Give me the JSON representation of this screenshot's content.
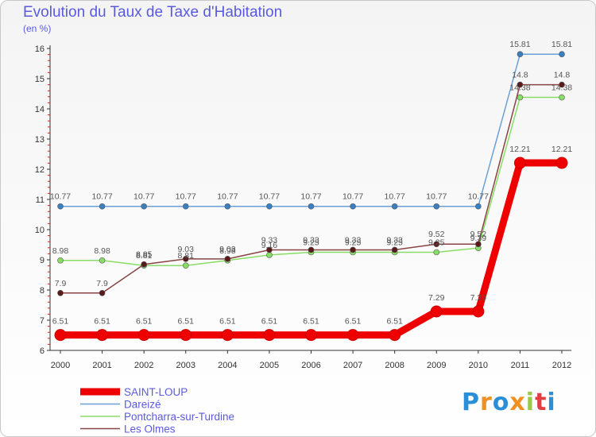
{
  "chart_data": {
    "type": "line",
    "title": "Evolution du Taux de Taxe d'Habitation",
    "subtitle": "(en %)",
    "x": [
      "2000",
      "2001",
      "2002",
      "2003",
      "2004",
      "2005",
      "2006",
      "2007",
      "2008",
      "2009",
      "2010",
      "2011",
      "2012"
    ],
    "yticks": [
      "6",
      "7",
      "8",
      "9",
      "10",
      "11",
      "12",
      "13",
      "14",
      "15",
      "16"
    ],
    "ylim": [
      6,
      16
    ],
    "grid": false,
    "legend_position": "bottom-left",
    "series": [
      {
        "name": "SAINT-LOUP",
        "color": "#ee0000",
        "values": [
          6.51,
          6.51,
          6.51,
          6.51,
          6.51,
          6.51,
          6.51,
          6.51,
          6.51,
          7.29,
          7.29,
          12.21,
          12.21
        ],
        "labels": [
          "6.51",
          "6.51",
          "6.51",
          "6.51",
          "6.51",
          "6.51",
          "6.51",
          "6.51",
          "6.51",
          "7.29",
          "7.29",
          "12.21",
          "12.21"
        ]
      },
      {
        "name": "Dareizé",
        "color": "#6aa0d6",
        "values": [
          10.77,
          10.77,
          10.77,
          10.77,
          10.77,
          10.77,
          10.77,
          10.77,
          10.77,
          10.77,
          10.77,
          15.81,
          15.81
        ],
        "labels": [
          "10.77",
          "10.77",
          "10.77",
          "10.77",
          "10.77",
          "10.77",
          "10.77",
          "10.77",
          "10.77",
          "10.77",
          "10.77",
          "15.81",
          "15.81"
        ]
      },
      {
        "name": "Pontcharra-sur-Turdine",
        "color": "#88dd66",
        "values": [
          8.98,
          8.98,
          8.81,
          8.81,
          8.98,
          9.16,
          9.25,
          9.25,
          9.25,
          9.25,
          9.39,
          14.38,
          14.38
        ],
        "labels": [
          "8.98",
          "8.98",
          "8.81",
          "8.81",
          "8.98",
          "9.16",
          "9.25",
          "9.25",
          "9.25",
          "9.25",
          "9.39",
          "14.38",
          "14.38"
        ]
      },
      {
        "name": "Les Olmes",
        "color": "#884444",
        "values": [
          7.9,
          7.9,
          8.85,
          9.03,
          9.03,
          9.33,
          9.33,
          9.33,
          9.33,
          9.52,
          9.52,
          14.8,
          14.8
        ],
        "labels": [
          "7.9",
          "7.9",
          "8.85",
          "9.03",
          "9.03",
          "9.33",
          "9.33",
          "9.33",
          "9.33",
          "9.52",
          "9.52",
          "14.8",
          "14.8"
        ]
      }
    ]
  },
  "logo": {
    "letters": [
      "P",
      "r",
      "o",
      "x",
      "i",
      "t",
      "i"
    ],
    "colors": [
      "#2a8fd6",
      "#f09020",
      "#2a8fd6",
      "#f09020",
      "#9ac84a",
      "#e04040",
      "#2a8fd6"
    ]
  }
}
